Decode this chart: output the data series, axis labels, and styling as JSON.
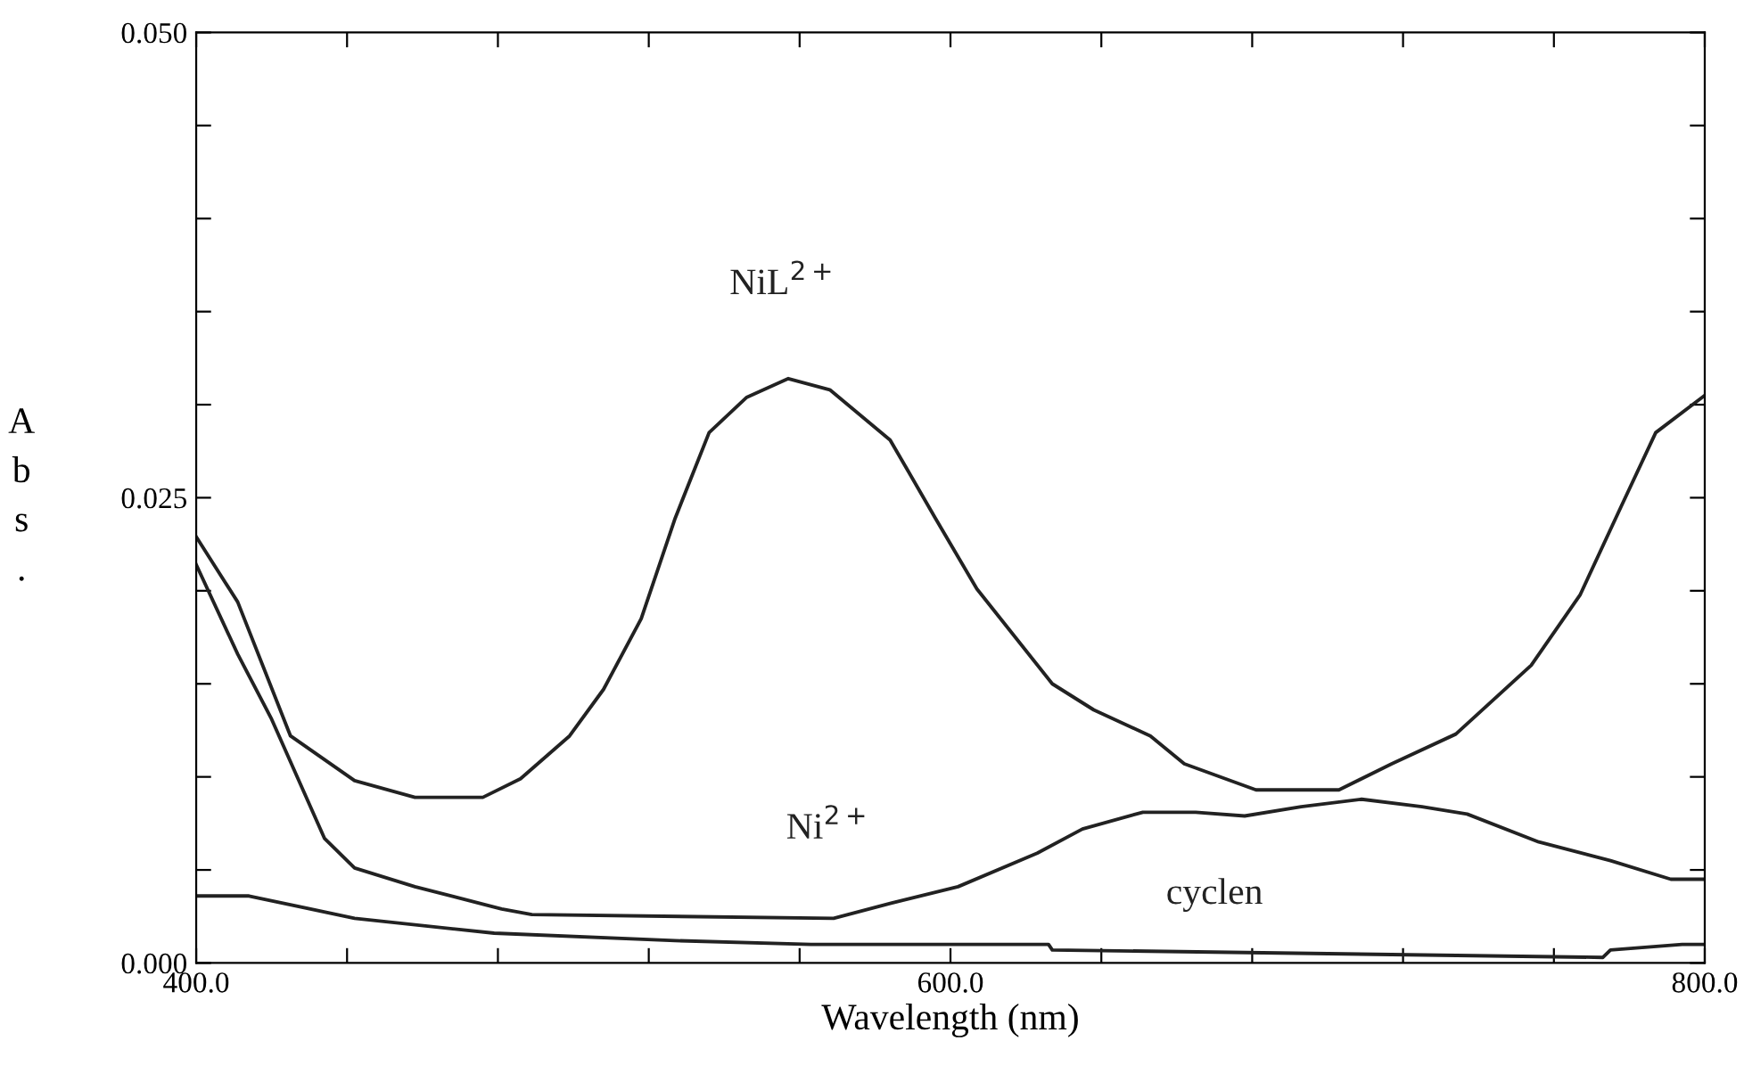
{
  "chart_data": {
    "type": "line",
    "xlabel": "Wavelength (nm)",
    "ylabel": "Abs.",
    "xlim": [
      400,
      800
    ],
    "ylim": [
      0,
      0.05
    ],
    "xticks": [
      {
        "value": 400,
        "label": "400.0"
      },
      {
        "value": 440,
        "label": null
      },
      {
        "value": 480,
        "label": null
      },
      {
        "value": 520,
        "label": null
      },
      {
        "value": 560,
        "label": null
      },
      {
        "value": 600,
        "label": "600.0"
      },
      {
        "value": 640,
        "label": null
      },
      {
        "value": 680,
        "label": null
      },
      {
        "value": 720,
        "label": null
      },
      {
        "value": 760,
        "label": null
      },
      {
        "value": 800,
        "label": "800.0"
      }
    ],
    "yticks": [
      {
        "value": 0,
        "label": "0.000"
      },
      {
        "value": 0.005,
        "label": null
      },
      {
        "value": 0.01,
        "label": null
      },
      {
        "value": 0.015,
        "label": null
      },
      {
        "value": 0.02,
        "label": null
      },
      {
        "value": 0.025,
        "label": "0.025"
      },
      {
        "value": 0.03,
        "label": null
      },
      {
        "value": 0.035,
        "label": null
      },
      {
        "value": 0.04,
        "label": null
      },
      {
        "value": 0.045,
        "label": null
      },
      {
        "value": 0.05,
        "label": "0.050"
      }
    ],
    "grid": false,
    "line_style": "solid",
    "marker": "none",
    "series": [
      {
        "name": "NiL$^{2+}$",
        "color": "#222222",
        "x": [
          400,
          411,
          425,
          442,
          458,
          476,
          486,
          499,
          508,
          518,
          527,
          536,
          546,
          557,
          568,
          584,
          596,
          607,
          627,
          638,
          653,
          662,
          681,
          703,
          717,
          734,
          754,
          767,
          778,
          787,
          800
        ],
        "values": [
          0.0229,
          0.0194,
          0.0122,
          0.0098,
          0.0089,
          0.0089,
          0.0099,
          0.0122,
          0.0147,
          0.0185,
          0.0239,
          0.0285,
          0.0304,
          0.0314,
          0.0308,
          0.0281,
          0.0239,
          0.0201,
          0.015,
          0.0136,
          0.0122,
          0.0107,
          0.0093,
          0.0093,
          0.0107,
          0.0123,
          0.016,
          0.0198,
          0.0246,
          0.0285,
          0.0305
        ]
      },
      {
        "name": "Ni$^{2+}$",
        "color": "#222222",
        "x": [
          400,
          411,
          420,
          434,
          442,
          458,
          481,
          489,
          569,
          584,
          602,
          623,
          635,
          651,
          665,
          678,
          693,
          709,
          725,
          737,
          756,
          775,
          791,
          800
        ],
        "values": [
          0.0214,
          0.0166,
          0.0131,
          0.0067,
          0.0051,
          0.0041,
          0.0029,
          0.0026,
          0.0024,
          0.0032,
          0.0041,
          0.0059,
          0.0072,
          0.0081,
          0.0081,
          0.0079,
          0.0084,
          0.0088,
          0.0084,
          0.008,
          0.0065,
          0.0055,
          0.0045,
          0.0045
        ]
      },
      {
        "name": "cyclen",
        "color": "#222222",
        "x": [
          400,
          414,
          442,
          479,
          527,
          563,
          626,
          627,
          773,
          775,
          794,
          800
        ],
        "values": [
          0.0036,
          0.0036,
          0.0024,
          0.0016,
          0.0012,
          0.001,
          0.001,
          0.0007,
          0.0003,
          0.0007,
          0.001,
          0.001
        ]
      }
    ]
  }
}
